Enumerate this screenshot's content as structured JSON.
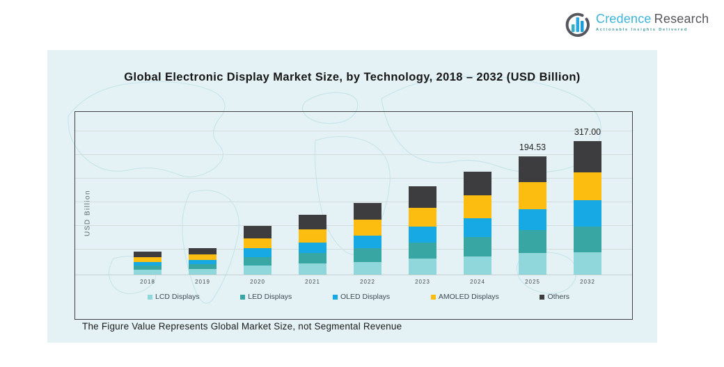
{
  "brand": {
    "name_part1": "Credence",
    "name_part2": "Research",
    "tagline": "Actionable Insights Delivered",
    "colors": {
      "part1": "#3FB3DB",
      "part2": "#55575C",
      "tagline": "#3C96A0",
      "icon_ring": "#55575C",
      "icon_bars": [
        "#35AFC4",
        "#29A8DF",
        "#1C9CD8"
      ]
    }
  },
  "panel": {
    "background": "#E4F2F5",
    "map_outline": "#C8E5EC"
  },
  "chart": {
    "title": "Global Electronic Display Market Size, by Technology, 2018 – 2032 (USD Billion)",
    "ylabel": "USD Billion",
    "footnote": "The Figure Value Represents Global Market Size, not Segmental Revenue",
    "frame_color": "#404040",
    "grid_color": "#D3DBDC"
  },
  "chart_data": {
    "type": "bar",
    "stacked": true,
    "title": "Global Electronic Display Market Size, by Technology, 2018 – 2032 (USD Billion)",
    "xlabel": "",
    "ylabel": "USD Billion",
    "grid": true,
    "legend_position": "bottom-inside",
    "categories": [
      "2018",
      "2019",
      "2020",
      "2021",
      "2022",
      "2023",
      "2024",
      "2025",
      "2032"
    ],
    "series": [
      {
        "name": "LCD Displays",
        "color": "#8FD7DB",
        "values": [
          8,
          9,
          15,
          18,
          21,
          26,
          30,
          35.0,
          53
        ]
      },
      {
        "name": "LED Displays",
        "color": "#38A6A3",
        "values": [
          7,
          8,
          14,
          18,
          22,
          27,
          32,
          38.0,
          61
        ]
      },
      {
        "name": "OLED Displays",
        "color": "#16A9E4",
        "values": [
          6,
          7,
          14,
          17,
          21,
          26,
          31,
          34.5,
          63
        ]
      },
      {
        "name": "AMOLED Displays",
        "color": "#FDBD10",
        "values": [
          8,
          9,
          17,
          21,
          26,
          31,
          37,
          44.8,
          66
        ]
      },
      {
        "name": "Others",
        "color": "#3D3D3F",
        "values": [
          9,
          11,
          20,
          25,
          28,
          35,
          40,
          42.23,
          74
        ]
      }
    ],
    "totals": [
      38,
      44,
      80,
      99,
      118,
      145,
      170,
      194.53,
      317
    ],
    "bar_value_labels": [
      "",
      "",
      "",
      "",
      "",
      "",
      "",
      "194.53",
      "317.00"
    ]
  }
}
